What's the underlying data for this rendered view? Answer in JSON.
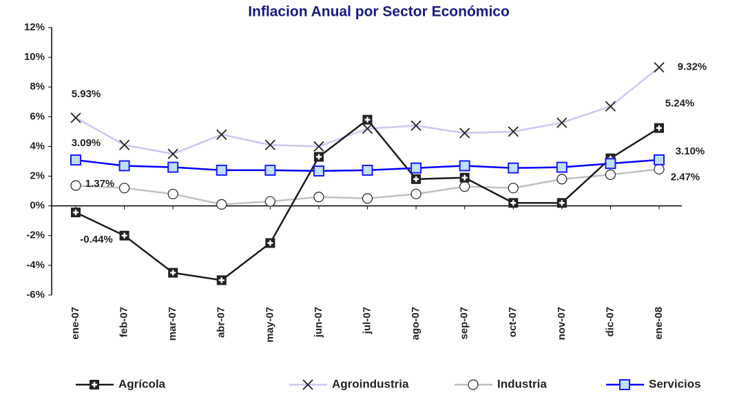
{
  "chart_data": {
    "type": "line",
    "title": "Inflacion Anual por Sector Económico",
    "categories": [
      "ene-07",
      "feb-07",
      "mar-07",
      "abr-07",
      "may-07",
      "jun-07",
      "jul-07",
      "ago-07",
      "sep-07",
      "oct-07",
      "nov-07",
      "dic-07",
      "ene-08"
    ],
    "ylim": [
      -6,
      12
    ],
    "yticks": [
      {
        "value": -6,
        "label": "-6%"
      },
      {
        "value": -4,
        "label": "-4%"
      },
      {
        "value": -2,
        "label": "-2%"
      },
      {
        "value": 0,
        "label": "0%"
      },
      {
        "value": 2,
        "label": "2%"
      },
      {
        "value": 4,
        "label": "4%"
      },
      {
        "value": 6,
        "label": "6%"
      },
      {
        "value": 8,
        "label": "8%"
      },
      {
        "value": 10,
        "label": "10%"
      },
      {
        "value": 12,
        "label": "12%"
      }
    ],
    "legend": "bottom",
    "series": [
      {
        "name": "Agrícola",
        "color": "#1a1a1a",
        "marker": "plus-square",
        "values": [
          -0.44,
          -2.0,
          -4.5,
          -5.0,
          -2.5,
          3.3,
          5.8,
          1.8,
          1.9,
          0.2,
          0.2,
          3.2,
          5.24
        ],
        "value_labels": [
          "-0.44%",
          null,
          null,
          null,
          null,
          null,
          null,
          null,
          null,
          null,
          null,
          null,
          "5.24%"
        ]
      },
      {
        "name": "Agroindustria",
        "color": "#c8c8f2",
        "marker": "x",
        "values": [
          5.93,
          4.1,
          3.5,
          4.8,
          4.1,
          4.0,
          5.2,
          5.4,
          4.9,
          5.0,
          5.6,
          6.7,
          9.32
        ],
        "value_labels": [
          "5.93%",
          null,
          null,
          null,
          null,
          null,
          null,
          null,
          null,
          null,
          null,
          null,
          "9.32%"
        ]
      },
      {
        "name": "Industria",
        "color": "#c0c0c0",
        "marker": "circle",
        "values": [
          1.37,
          1.2,
          0.8,
          0.1,
          0.3,
          0.6,
          0.5,
          0.8,
          1.3,
          1.2,
          1.8,
          2.1,
          2.47
        ],
        "value_labels": [
          "1.37%",
          null,
          null,
          null,
          null,
          null,
          null,
          null,
          null,
          null,
          null,
          null,
          "2.47%"
        ]
      },
      {
        "name": "Servicios",
        "color": "#0000ff",
        "marker": "square",
        "values": [
          3.09,
          2.7,
          2.6,
          2.4,
          2.4,
          2.35,
          2.4,
          2.55,
          2.7,
          2.55,
          2.6,
          2.85,
          3.1
        ],
        "value_labels": [
          "3.09%",
          null,
          null,
          null,
          null,
          null,
          null,
          null,
          null,
          null,
          null,
          null,
          "3.10%"
        ]
      }
    ]
  }
}
